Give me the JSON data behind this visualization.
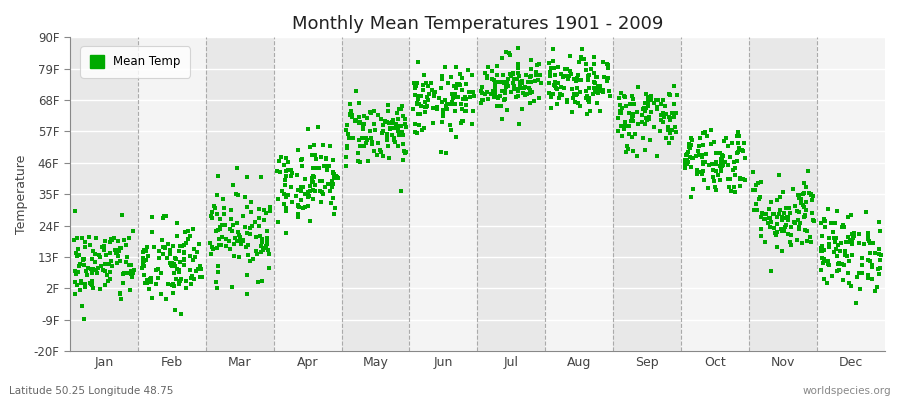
{
  "title": "Monthly Mean Temperatures 1901 - 2009",
  "ylabel": "Temperature",
  "subtitle_left": "Latitude 50.25 Longitude 48.75",
  "subtitle_right": "worldspecies.org",
  "ytick_labels": [
    "-20F",
    "-9F",
    "2F",
    "13F",
    "24F",
    "35F",
    "46F",
    "57F",
    "68F",
    "79F",
    "90F"
  ],
  "ytick_values": [
    -20,
    -9,
    2,
    13,
    24,
    35,
    46,
    57,
    68,
    79,
    90
  ],
  "ylim": [
    -20,
    90
  ],
  "xlim": [
    0.5,
    12.5
  ],
  "xtick_positions": [
    1,
    2,
    3,
    4,
    5,
    6,
    7,
    8,
    9,
    10,
    11,
    12
  ],
  "xtick_labels": [
    "Jan",
    "Feb",
    "Mar",
    "Apr",
    "May",
    "Jun",
    "Jul",
    "Aug",
    "Sep",
    "Oct",
    "Nov",
    "Dec"
  ],
  "vline_positions": [
    1.5,
    2.5,
    3.5,
    4.5,
    5.5,
    6.5,
    7.5,
    8.5,
    9.5,
    10.5,
    11.5
  ],
  "dot_color": "#00aa00",
  "dot_size": 5,
  "figure_bg_color": "#ffffff",
  "band_color_even": "#e8e8e8",
  "band_color_odd": "#f4f4f4",
  "legend_label": "Mean Temp",
  "seed": 42,
  "n_years": 109,
  "monthly_means": [
    10,
    10,
    22,
    40,
    57,
    67,
    74,
    73,
    62,
    47,
    28,
    15
  ],
  "monthly_stds": [
    7,
    8,
    8,
    7,
    6,
    6,
    5,
    5,
    6,
    6,
    7,
    7
  ]
}
